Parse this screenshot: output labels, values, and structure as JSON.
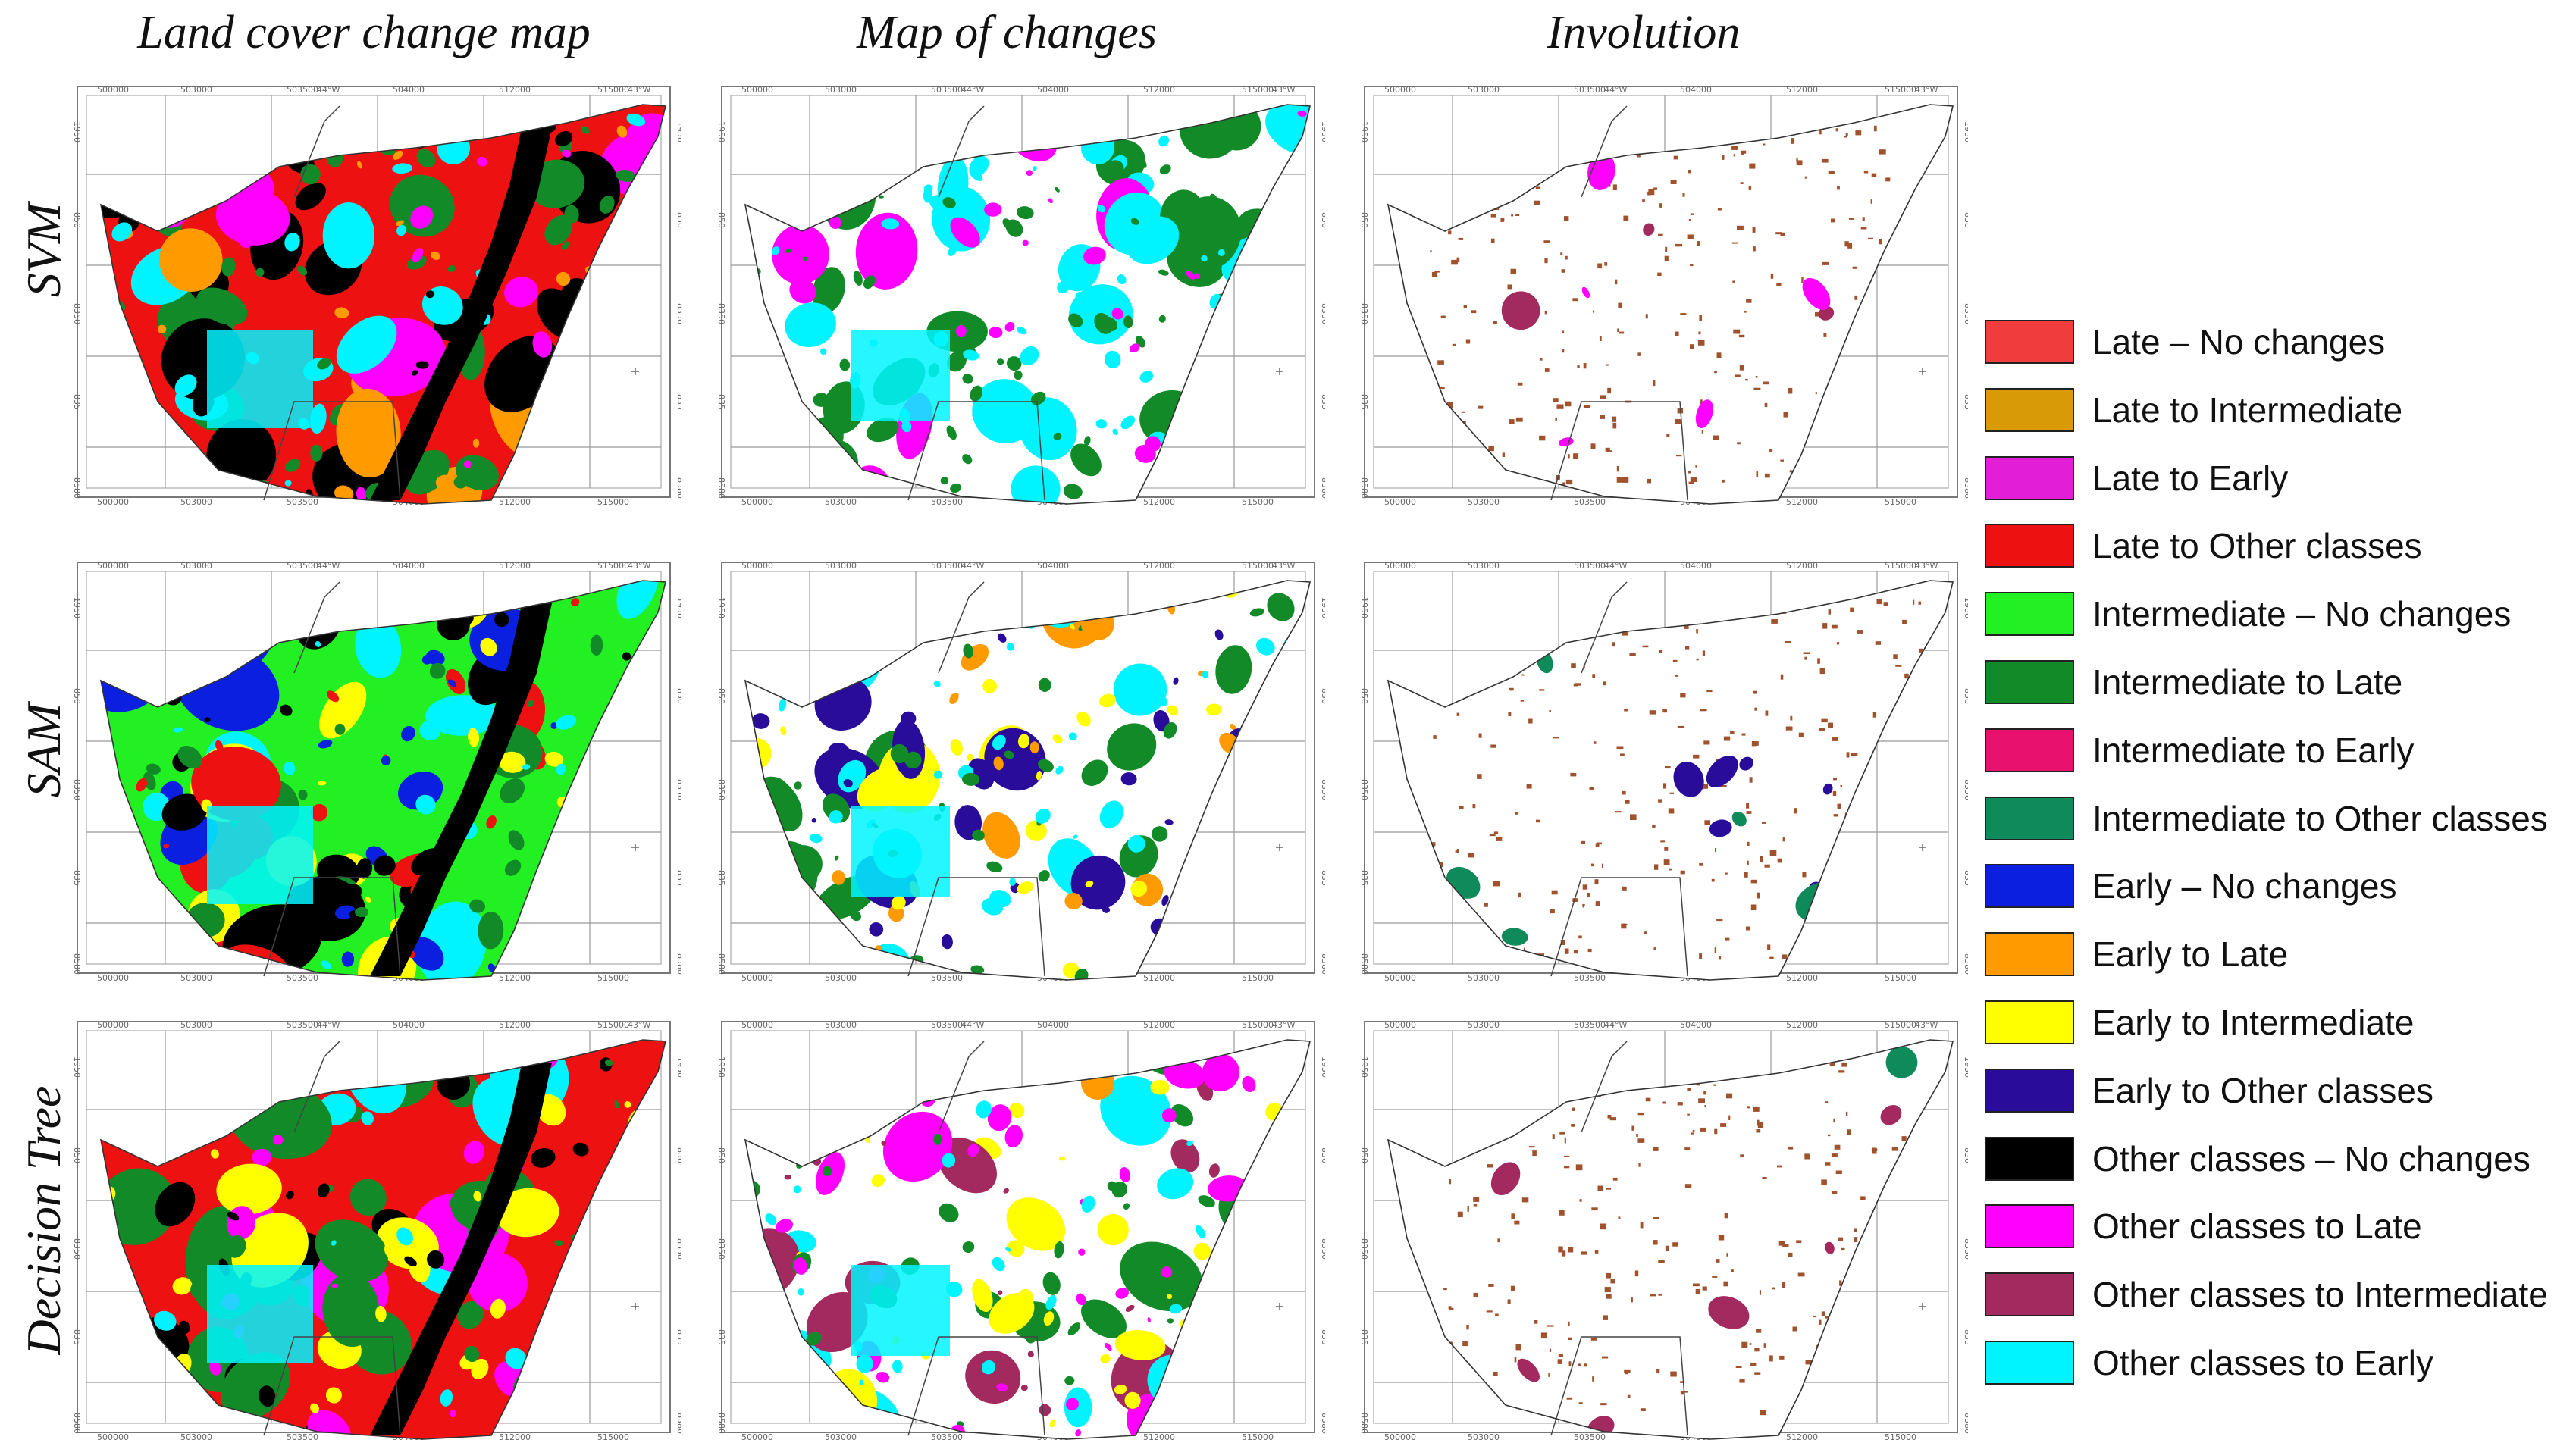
{
  "column_titles": [
    "Land cover change map",
    "Map of changes",
    "Involution"
  ],
  "row_titles": [
    "SVM",
    "SAM",
    "Decision Tree"
  ],
  "legend": [
    {
      "label": "Late – No changes",
      "color": "#f03c3c"
    },
    {
      "label": "Late to Intermediate",
      "color": "#d99a08"
    },
    {
      "label": "Late to Early",
      "color": "#e21fd6"
    },
    {
      "label": "Late to Other classes",
      "color": "#ee1111"
    },
    {
      "label": "Intermediate – No changes",
      "color": "#22f022"
    },
    {
      "label": "Intermediate to Late",
      "color": "#128a28"
    },
    {
      "label": "Intermediate to Early",
      "color": "#e8116e"
    },
    {
      "label": "Intermediate to Other classes",
      "color": "#0f8a5a"
    },
    {
      "label": "Early – No changes",
      "color": "#0a1fe0"
    },
    {
      "label": "Early to Late",
      "color": "#ff9a00"
    },
    {
      "label": "Early to Intermediate",
      "color": "#ffff00"
    },
    {
      "label": "Early to Other classes",
      "color": "#2a0c9a"
    },
    {
      "label": "Other classes – No changes",
      "color": "#000000"
    },
    {
      "label": "Other classes to Late",
      "color": "#ff00ff"
    },
    {
      "label": "Other classes to Intermediate",
      "color": "#a32a5e"
    },
    {
      "label": "Other classes to Early",
      "color": "#00f4ff"
    }
  ],
  "involution_color": "#a0522d",
  "grid_tick_labels": {
    "top": [
      "500000",
      "503000",
      "503500",
      "504000",
      "512000",
      "515000"
    ],
    "top_extra": [
      "44°W",
      "43°W"
    ],
    "left": [
      "1950",
      "850",
      "8350",
      "835",
      "8580"
    ]
  }
}
